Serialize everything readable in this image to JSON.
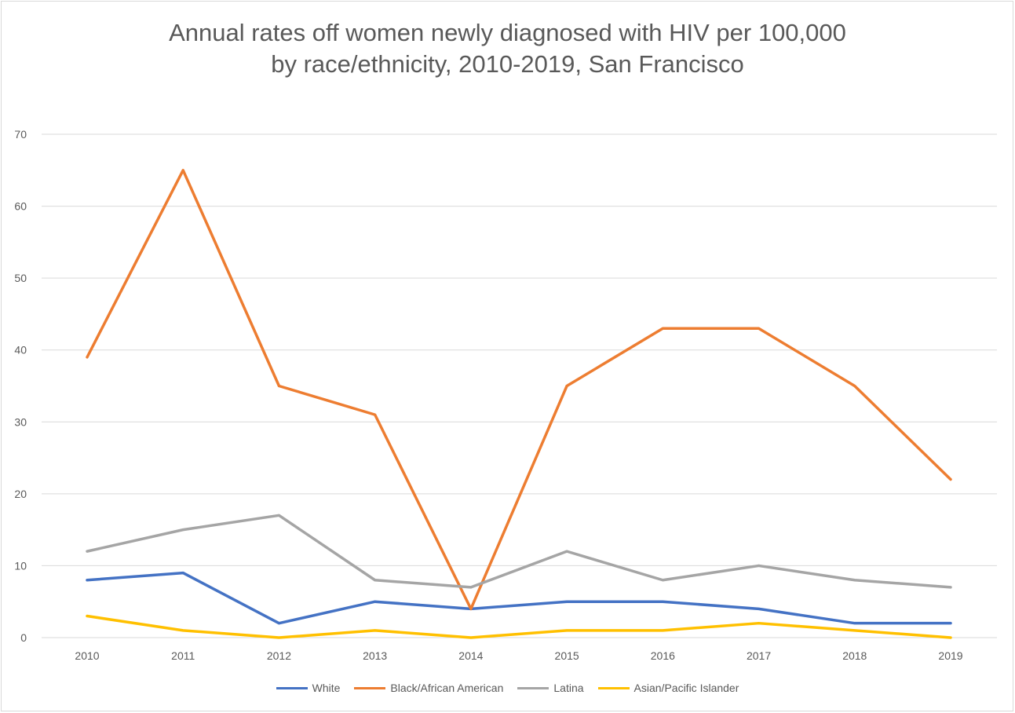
{
  "chart_data": {
    "type": "line",
    "title": "Annual rates off women newly diagnosed with HIV per 100,000 by race/ethnicity, 2010-2019, San Francisco",
    "title_lines": [
      "Annual rates off women newly diagnosed with HIV per 100,000",
      "by race/ethnicity, 2010-2019, San Francisco"
    ],
    "xlabel": "",
    "ylabel": "",
    "categories": [
      "2010",
      "2011",
      "2012",
      "2013",
      "2014",
      "2015",
      "2016",
      "2017",
      "2018",
      "2019"
    ],
    "ylim": [
      0,
      70
    ],
    "yticks": [
      0,
      10,
      20,
      30,
      40,
      50,
      60,
      70
    ],
    "grid": true,
    "legend": "bottom",
    "series": [
      {
        "name": "White",
        "color": "#4472c4",
        "values": [
          8,
          9,
          2,
          5,
          4,
          5,
          5,
          4,
          2,
          2
        ]
      },
      {
        "name": "Black/African American",
        "color": "#ed7d31",
        "values": [
          39,
          65,
          35,
          31,
          4,
          35,
          43,
          43,
          35,
          22
        ]
      },
      {
        "name": "Latina",
        "color": "#a5a5a5",
        "values": [
          12,
          15,
          17,
          8,
          7,
          12,
          8,
          10,
          8,
          7
        ]
      },
      {
        "name": "Asian/Pacific Islander",
        "color": "#ffc000",
        "values": [
          3,
          1,
          0,
          1,
          0,
          1,
          1,
          2,
          1,
          0
        ]
      }
    ]
  }
}
